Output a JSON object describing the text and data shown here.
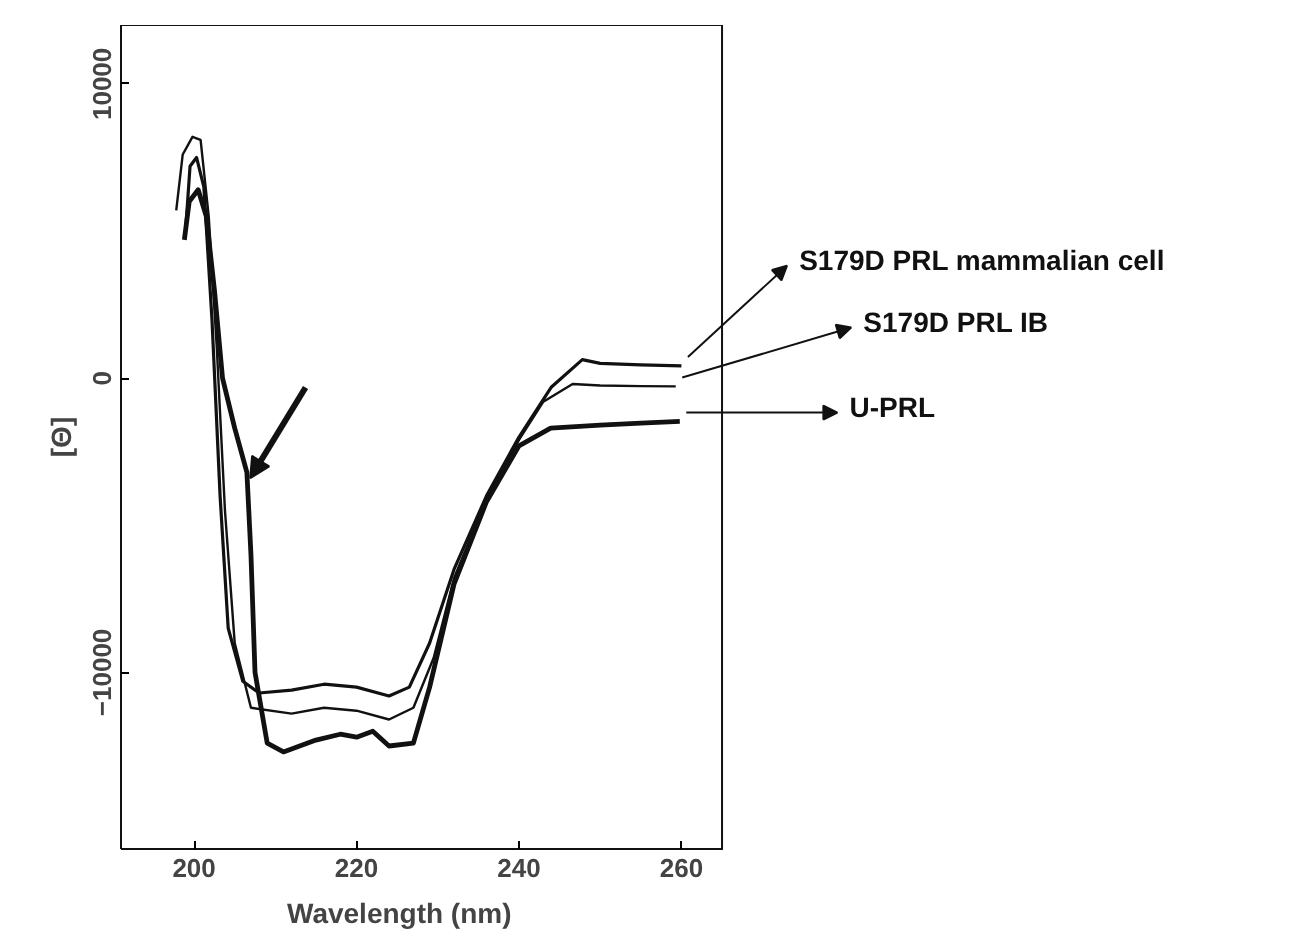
{
  "chart_data": {
    "type": "line",
    "xlabel": "Wavelength (nm)",
    "ylabel": "[Θ]",
    "xlim": [
      191,
      265
    ],
    "ylim": [
      -16000,
      12000
    ],
    "xticks": [
      200,
      220,
      240,
      260
    ],
    "yticks": [
      -10000,
      0,
      10000
    ],
    "grid": false,
    "legend": "right",
    "marker": "none",
    "line_style": "solid",
    "series": [
      {
        "name": "S179D PRL mammalian cell",
        "color": "#111111",
        "x": [
          199.0,
          199.5,
          200.3,
          201.2,
          202.2,
          203.2,
          204.2,
          206,
          208,
          212,
          216,
          220,
          224,
          226.5,
          229,
          232,
          236,
          240,
          244,
          247.8,
          250,
          255,
          260
        ],
        "values": [
          5200,
          7200,
          7500,
          6500,
          2000,
          -4000,
          -8500,
          -10300,
          -10700,
          -10600,
          -10400,
          -10500,
          -10800,
          -10500,
          -9000,
          -6500,
          -4000,
          -2000,
          -300,
          630,
          500,
          450,
          420
        ]
      },
      {
        "name": "S179D PRL IB",
        "color": "#111111",
        "x": [
          197.8,
          198.6,
          199.8,
          200.8,
          201.8,
          202.8,
          203.8,
          205,
          207,
          212,
          216,
          220,
          224,
          227,
          229.5,
          232,
          236,
          240,
          243,
          246.6,
          250,
          255,
          259.3
        ],
        "values": [
          5700,
          7600,
          8200,
          8100,
          5500,
          1000,
          -4500,
          -9000,
          -11200,
          -11400,
          -11200,
          -11300,
          -11600,
          -11200,
          -9500,
          -6800,
          -4100,
          -2100,
          -800,
          -200,
          -250,
          -270,
          -280
        ]
      },
      {
        "name": "U-PRL",
        "color": "#111111",
        "x": [
          198.8,
          199.4,
          200.5,
          201.5,
          202.5,
          203.5,
          205,
          206.5,
          207,
          207.5,
          209,
          211,
          215,
          218,
          220,
          222,
          224,
          227,
          229,
          232,
          236,
          240,
          243.9,
          250,
          255,
          259.8
        ],
        "values": [
          4700,
          6000,
          6400,
          5500,
          3000,
          0,
          -1700,
          -3200,
          -6000,
          -10000,
          -12400,
          -12700,
          -12300,
          -12100,
          -12200,
          -12000,
          -12500,
          -12400,
          -10500,
          -7000,
          -4200,
          -2300,
          -1700,
          -1600,
          -1530,
          -1470
        ]
      }
    ]
  }
}
